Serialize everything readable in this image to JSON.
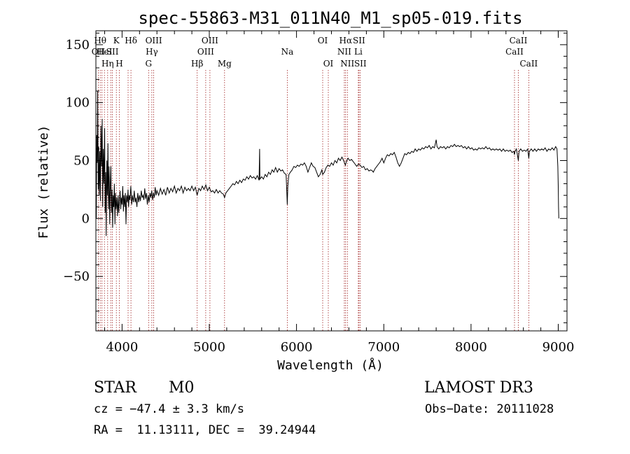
{
  "chart_data": {
    "type": "line",
    "title": "spec-55863-M31_011N40_M1_sp05-019.fits",
    "xlabel": "Wavelength (Å)",
    "ylabel": "Flux (relative)",
    "xlim": [
      3700,
      9100
    ],
    "ylim": [
      -97,
      162
    ],
    "xticks": [
      {
        "value": 4000,
        "label": "4000"
      },
      {
        "value": 5000,
        "label": "5000"
      },
      {
        "value": 6000,
        "label": "6000"
      },
      {
        "value": 7000,
        "label": "7000"
      },
      {
        "value": 8000,
        "label": "8000"
      },
      {
        "value": 9000,
        "label": "9000"
      }
    ],
    "yticks": [
      {
        "value": -50,
        "label": "−50"
      },
      {
        "value": 0,
        "label": "0"
      },
      {
        "value": 50,
        "label": "50"
      },
      {
        "value": 100,
        "label": "100"
      },
      {
        "value": 150,
        "label": "150"
      }
    ],
    "lines": [
      {
        "wl": 3727,
        "label": "OII",
        "row": 1
      },
      {
        "wl": 3750,
        "label": "Hθ",
        "row": 0
      },
      {
        "wl": 3770,
        "label": "—",
        "row": 2
      },
      {
        "wl": 3798,
        "label": "HeI",
        "row": 1
      },
      {
        "wl": 3835,
        "label": "Hη",
        "row": 2
      },
      {
        "wl": 3870,
        "label": "",
        "row": 0
      },
      {
        "wl": 3889,
        "label": "SII",
        "row": 1
      },
      {
        "wl": 3934,
        "label": "K",
        "row": 0
      },
      {
        "wl": 3969,
        "label": "H",
        "row": 2
      },
      {
        "wl": 4069,
        "label": "",
        "row": 0
      },
      {
        "wl": 4102,
        "label": "Hδ",
        "row": 0
      },
      {
        "wl": 4304,
        "label": "G",
        "row": 2
      },
      {
        "wl": 4341,
        "label": "Hγ",
        "row": 1
      },
      {
        "wl": 4363,
        "label": "OIII",
        "row": 0
      },
      {
        "wl": 4861,
        "label": "Hβ",
        "row": 2
      },
      {
        "wl": 4959,
        "label": "OIII",
        "row": 1
      },
      {
        "wl": 5007,
        "label": "OIII",
        "row": 0
      },
      {
        "wl": 5175,
        "label": "Mg",
        "row": 2
      },
      {
        "wl": 5894,
        "label": "Na",
        "row": 1
      },
      {
        "wl": 6300,
        "label": "OI",
        "row": 0
      },
      {
        "wl": 6364,
        "label": "OI",
        "row": 2
      },
      {
        "wl": 6548,
        "label": "NII",
        "row": 1
      },
      {
        "wl": 6563,
        "label": "Hα",
        "row": 0
      },
      {
        "wl": 6583,
        "label": "NII",
        "row": 2
      },
      {
        "wl": 6708,
        "label": "Li",
        "row": 1
      },
      {
        "wl": 6716,
        "label": "SII",
        "row": 0
      },
      {
        "wl": 6731,
        "label": "SII",
        "row": 2
      },
      {
        "wl": 8498,
        "label": "CaII",
        "row": 1
      },
      {
        "wl": 8542,
        "label": "CaII",
        "row": 0
      },
      {
        "wl": 8662,
        "label": "CaII",
        "row": 2
      }
    ],
    "spectrum": [
      [
        3705,
        0
      ],
      [
        3710,
        72
      ],
      [
        3715,
        48
      ],
      [
        3720,
        110
      ],
      [
        3727,
        25
      ],
      [
        3732,
        62
      ],
      [
        3738,
        20
      ],
      [
        3745,
        58
      ],
      [
        3752,
        15
      ],
      [
        3758,
        80
      ],
      [
        3765,
        45
      ],
      [
        3772,
        86
      ],
      [
        3778,
        10
      ],
      [
        3785,
        60
      ],
      [
        3792,
        30
      ],
      [
        3800,
        78
      ],
      [
        3806,
        5
      ],
      [
        3812,
        40
      ],
      [
        3818,
        -15
      ],
      [
        3825,
        50
      ],
      [
        3832,
        20
      ],
      [
        3838,
        65
      ],
      [
        3845,
        8
      ],
      [
        3852,
        45
      ],
      [
        3858,
        -5
      ],
      [
        3865,
        30
      ],
      [
        3872,
        45
      ],
      [
        3878,
        5
      ],
      [
        3885,
        25
      ],
      [
        3892,
        -8
      ],
      [
        3898,
        20
      ],
      [
        3905,
        10
      ],
      [
        3912,
        30
      ],
      [
        3918,
        -5
      ],
      [
        3925,
        22
      ],
      [
        3932,
        8
      ],
      [
        3940,
        18
      ],
      [
        3948,
        2
      ],
      [
        3955,
        20
      ],
      [
        3962,
        5
      ],
      [
        3970,
        15
      ],
      [
        3978,
        24
      ],
      [
        3985,
        8
      ],
      [
        3992,
        18
      ],
      [
        4000,
        12
      ],
      [
        4008,
        28
      ],
      [
        4015,
        6
      ],
      [
        4022,
        20
      ],
      [
        4030,
        10
      ],
      [
        4038,
        22
      ],
      [
        4045,
        -5
      ],
      [
        4052,
        20
      ],
      [
        4060,
        14
      ],
      [
        4068,
        25
      ],
      [
        4075,
        10
      ],
      [
        4082,
        20
      ],
      [
        4090,
        16
      ],
      [
        4100,
        28
      ],
      [
        4110,
        12
      ],
      [
        4120,
        20
      ],
      [
        4130,
        14
      ],
      [
        4140,
        24
      ],
      [
        4150,
        14
      ],
      [
        4160,
        18
      ],
      [
        4170,
        10
      ],
      [
        4180,
        22
      ],
      [
        4190,
        14
      ],
      [
        4200,
        20
      ],
      [
        4210,
        15
      ],
      [
        4220,
        24
      ],
      [
        4230,
        18
      ],
      [
        4240,
        20
      ],
      [
        4250,
        16
      ],
      [
        4260,
        26
      ],
      [
        4270,
        17
      ],
      [
        4280,
        22
      ],
      [
        4290,
        12
      ],
      [
        4300,
        20
      ],
      [
        4310,
        14
      ],
      [
        4320,
        22
      ],
      [
        4330,
        18
      ],
      [
        4340,
        24
      ],
      [
        4350,
        16
      ],
      [
        4360,
        22
      ],
      [
        4370,
        18
      ],
      [
        4380,
        27
      ],
      [
        4390,
        20
      ],
      [
        4400,
        24
      ],
      [
        4420,
        20
      ],
      [
        4440,
        26
      ],
      [
        4460,
        21
      ],
      [
        4480,
        25
      ],
      [
        4500,
        20
      ],
      [
        4520,
        27
      ],
      [
        4540,
        22
      ],
      [
        4560,
        26
      ],
      [
        4580,
        23
      ],
      [
        4600,
        28
      ],
      [
        4620,
        22
      ],
      [
        4640,
        26
      ],
      [
        4660,
        24
      ],
      [
        4680,
        28
      ],
      [
        4700,
        22
      ],
      [
        4720,
        27
      ],
      [
        4740,
        24
      ],
      [
        4760,
        26
      ],
      [
        4780,
        24
      ],
      [
        4800,
        28
      ],
      [
        4820,
        24
      ],
      [
        4840,
        27
      ],
      [
        4860,
        20
      ],
      [
        4880,
        26
      ],
      [
        4900,
        24
      ],
      [
        4920,
        28
      ],
      [
        4940,
        25
      ],
      [
        4960,
        29
      ],
      [
        4980,
        24
      ],
      [
        5000,
        27
      ],
      [
        5020,
        23
      ],
      [
        5040,
        24
      ],
      [
        5060,
        22
      ],
      [
        5080,
        25
      ],
      [
        5100,
        22
      ],
      [
        5120,
        24
      ],
      [
        5140,
        22
      ],
      [
        5160,
        21
      ],
      [
        5175,
        18
      ],
      [
        5190,
        22
      ],
      [
        5210,
        24
      ],
      [
        5230,
        26
      ],
      [
        5250,
        28
      ],
      [
        5270,
        30
      ],
      [
        5290,
        29
      ],
      [
        5310,
        32
      ],
      [
        5330,
        30
      ],
      [
        5350,
        33
      ],
      [
        5370,
        31
      ],
      [
        5390,
        34
      ],
      [
        5410,
        33
      ],
      [
        5430,
        36
      ],
      [
        5450,
        34
      ],
      [
        5470,
        37
      ],
      [
        5490,
        35
      ],
      [
        5510,
        36
      ],
      [
        5530,
        34
      ],
      [
        5550,
        37
      ],
      [
        5570,
        33
      ],
      [
        5577,
        60
      ],
      [
        5580,
        34
      ],
      [
        5600,
        36
      ],
      [
        5620,
        34
      ],
      [
        5640,
        38
      ],
      [
        5660,
        36
      ],
      [
        5680,
        40
      ],
      [
        5700,
        38
      ],
      [
        5720,
        42
      ],
      [
        5740,
        40
      ],
      [
        5760,
        44
      ],
      [
        5780,
        40
      ],
      [
        5800,
        43
      ],
      [
        5820,
        41
      ],
      [
        5840,
        42
      ],
      [
        5860,
        39
      ],
      [
        5880,
        38
      ],
      [
        5890,
        20
      ],
      [
        5894,
        12
      ],
      [
        5900,
        28
      ],
      [
        5912,
        38
      ],
      [
        5930,
        40
      ],
      [
        5950,
        42
      ],
      [
        5970,
        45
      ],
      [
        5990,
        44
      ],
      [
        6010,
        46
      ],
      [
        6030,
        45
      ],
      [
        6050,
        47
      ],
      [
        6070,
        46
      ],
      [
        6090,
        48
      ],
      [
        6110,
        45
      ],
      [
        6130,
        40
      ],
      [
        6150,
        44
      ],
      [
        6170,
        48
      ],
      [
        6190,
        45
      ],
      [
        6210,
        44
      ],
      [
        6230,
        40
      ],
      [
        6250,
        36
      ],
      [
        6270,
        38
      ],
      [
        6290,
        42
      ],
      [
        6300,
        38
      ],
      [
        6320,
        40
      ],
      [
        6340,
        44
      ],
      [
        6360,
        46
      ],
      [
        6380,
        45
      ],
      [
        6400,
        48
      ],
      [
        6420,
        46
      ],
      [
        6440,
        50
      ],
      [
        6460,
        48
      ],
      [
        6480,
        52
      ],
      [
        6500,
        50
      ],
      [
        6520,
        53
      ],
      [
        6540,
        50
      ],
      [
        6560,
        46
      ],
      [
        6575,
        50
      ],
      [
        6590,
        52
      ],
      [
        6610,
        50
      ],
      [
        6630,
        51
      ],
      [
        6650,
        49
      ],
      [
        6670,
        47
      ],
      [
        6690,
        45
      ],
      [
        6710,
        47
      ],
      [
        6730,
        46
      ],
      [
        6750,
        44
      ],
      [
        6770,
        45
      ],
      [
        6790,
        42
      ],
      [
        6810,
        43
      ],
      [
        6830,
        41
      ],
      [
        6850,
        42
      ],
      [
        6870,
        41
      ],
      [
        6880,
        40
      ],
      [
        6900,
        43
      ],
      [
        6920,
        45
      ],
      [
        6940,
        47
      ],
      [
        6960,
        49
      ],
      [
        6980,
        52
      ],
      [
        7000,
        48
      ],
      [
        7020,
        52
      ],
      [
        7040,
        55
      ],
      [
        7060,
        54
      ],
      [
        7080,
        56
      ],
      [
        7100,
        55
      ],
      [
        7120,
        57
      ],
      [
        7140,
        53
      ],
      [
        7160,
        48
      ],
      [
        7180,
        45
      ],
      [
        7200,
        48
      ],
      [
        7220,
        52
      ],
      [
        7240,
        56
      ],
      [
        7260,
        55
      ],
      [
        7280,
        57
      ],
      [
        7300,
        56
      ],
      [
        7320,
        58
      ],
      [
        7340,
        57
      ],
      [
        7360,
        60
      ],
      [
        7380,
        58
      ],
      [
        7400,
        60
      ],
      [
        7420,
        59
      ],
      [
        7440,
        61
      ],
      [
        7460,
        60
      ],
      [
        7480,
        62
      ],
      [
        7500,
        61
      ],
      [
        7520,
        63
      ],
      [
        7540,
        60
      ],
      [
        7560,
        62
      ],
      [
        7580,
        61
      ],
      [
        7600,
        68
      ],
      [
        7610,
        62
      ],
      [
        7630,
        60
      ],
      [
        7650,
        62
      ],
      [
        7670,
        61
      ],
      [
        7690,
        62
      ],
      [
        7710,
        60
      ],
      [
        7730,
        62
      ],
      [
        7750,
        61
      ],
      [
        7770,
        63
      ],
      [
        7790,
        62
      ],
      [
        7810,
        64
      ],
      [
        7830,
        62
      ],
      [
        7850,
        63
      ],
      [
        7870,
        62
      ],
      [
        7890,
        63
      ],
      [
        7910,
        61
      ],
      [
        7930,
        62
      ],
      [
        7950,
        60
      ],
      [
        7970,
        62
      ],
      [
        7990,
        60
      ],
      [
        8010,
        61
      ],
      [
        8030,
        59
      ],
      [
        8050,
        60
      ],
      [
        8070,
        59
      ],
      [
        8090,
        61
      ],
      [
        8110,
        60
      ],
      [
        8130,
        61
      ],
      [
        8150,
        60
      ],
      [
        8170,
        62
      ],
      [
        8190,
        60
      ],
      [
        8210,
        61
      ],
      [
        8230,
        59
      ],
      [
        8250,
        60
      ],
      [
        8270,
        59
      ],
      [
        8290,
        60
      ],
      [
        8310,
        59
      ],
      [
        8330,
        60
      ],
      [
        8350,
        58
      ],
      [
        8370,
        60
      ],
      [
        8390,
        58
      ],
      [
        8410,
        59
      ],
      [
        8430,
        58
      ],
      [
        8450,
        59
      ],
      [
        8470,
        57
      ],
      [
        8490,
        58
      ],
      [
        8498,
        55
      ],
      [
        8505,
        58
      ],
      [
        8520,
        60
      ],
      [
        8542,
        50
      ],
      [
        8550,
        58
      ],
      [
        8570,
        60
      ],
      [
        8590,
        58
      ],
      [
        8610,
        59
      ],
      [
        8630,
        58
      ],
      [
        8650,
        60
      ],
      [
        8662,
        52
      ],
      [
        8670,
        58
      ],
      [
        8690,
        60
      ],
      [
        8710,
        58
      ],
      [
        8730,
        60
      ],
      [
        8750,
        58
      ],
      [
        8770,
        60
      ],
      [
        8790,
        59
      ],
      [
        8810,
        60
      ],
      [
        8830,
        59
      ],
      [
        8850,
        61
      ],
      [
        8870,
        58
      ],
      [
        8890,
        60
      ],
      [
        8910,
        59
      ],
      [
        8930,
        61
      ],
      [
        8950,
        59
      ],
      [
        8970,
        62
      ],
      [
        8985,
        60
      ],
      [
        8995,
        45
      ],
      [
        9000,
        28
      ],
      [
        9003,
        10
      ],
      [
        9006,
        0
      ]
    ]
  },
  "info": {
    "class_label": "STAR",
    "subclass": "M0",
    "survey": "LAMOST DR3",
    "redshift": "cz = −47.4 ± 3.3 km/s",
    "obs_date": "Obs−Date: 20111028",
    "coords": "RA =  11.13111, DEC =  39.24944"
  }
}
